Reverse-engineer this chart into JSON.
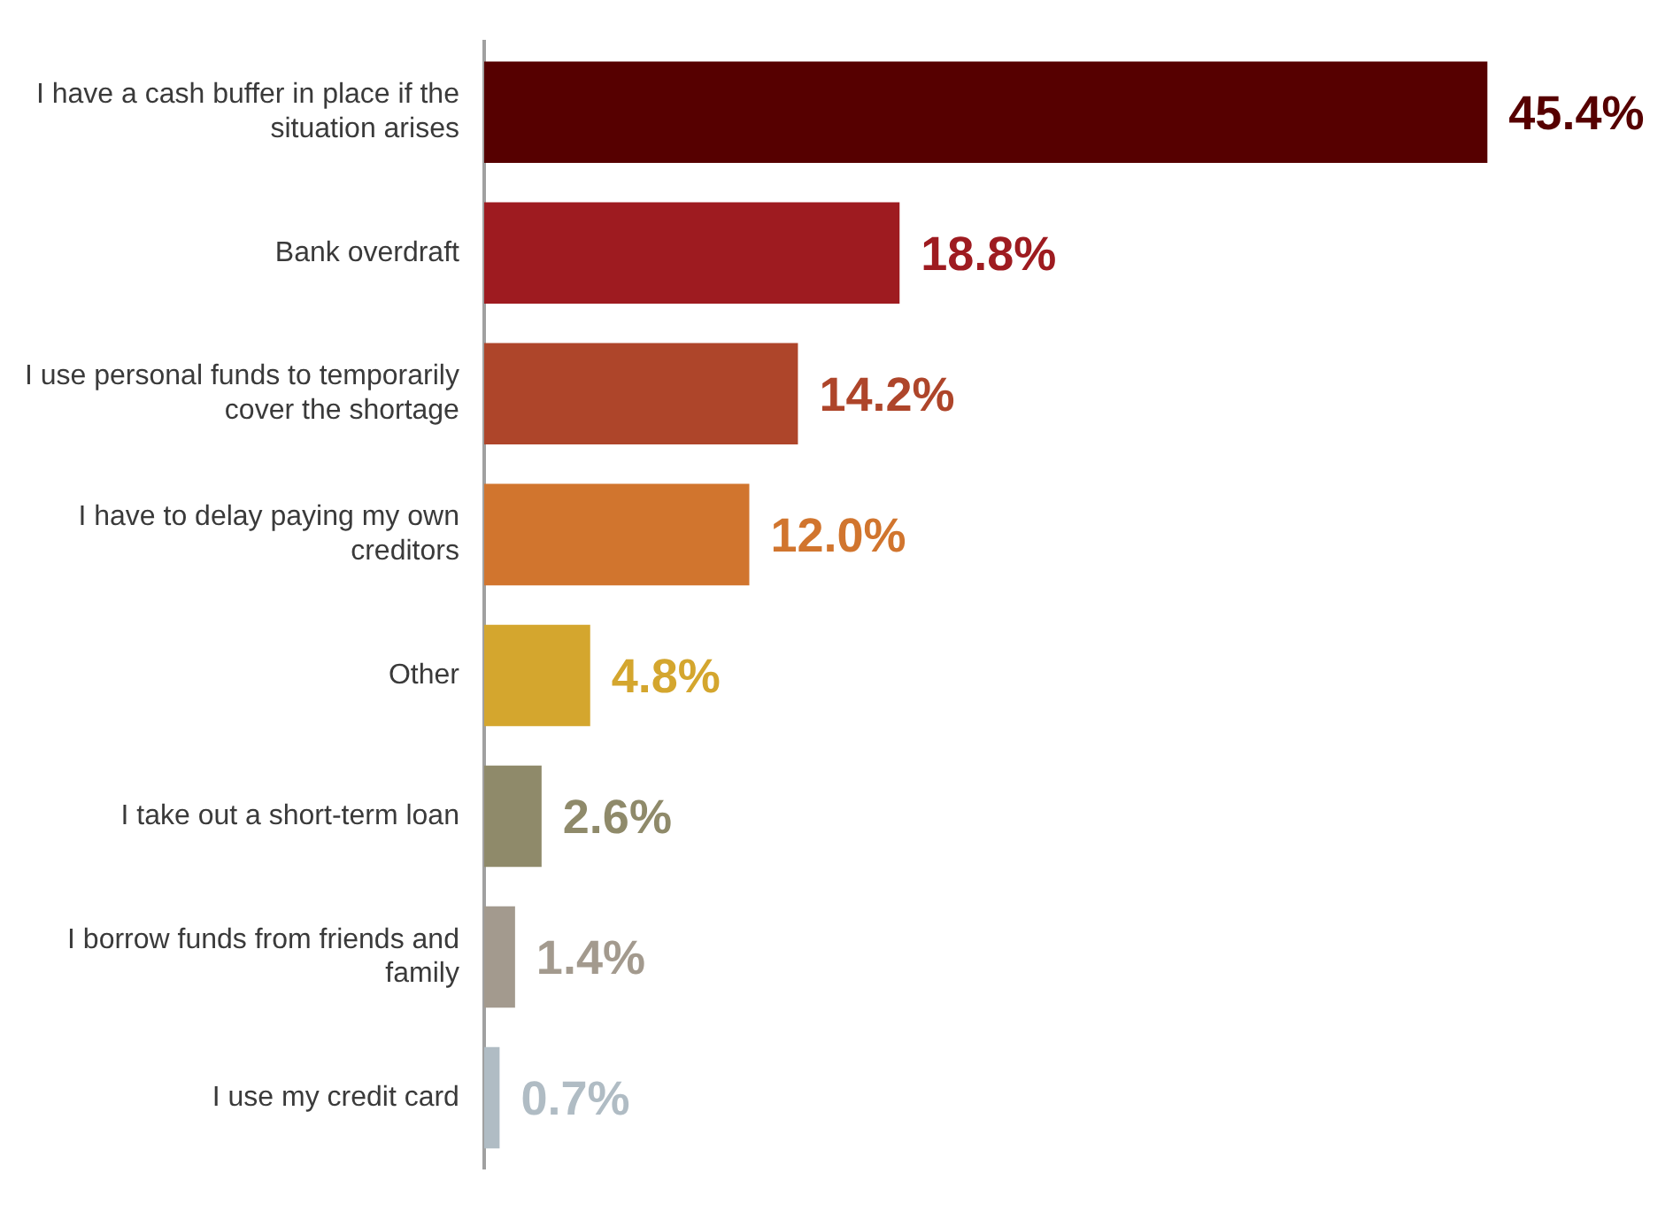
{
  "chart_data": {
    "type": "bar",
    "orientation": "horizontal",
    "categories": [
      "I have a cash buffer in place if the situation arises",
      "Bank overdraft",
      "I use personal funds to temporarily cover the shortage",
      "I have to delay paying my own creditors",
      "Other",
      "I take out a short-term loan",
      "I borrow funds from friends and family",
      "I use my credit card"
    ],
    "values": [
      45.4,
      18.8,
      14.2,
      12.0,
      4.8,
      2.6,
      1.4,
      0.7
    ],
    "value_labels": [
      "45.4%",
      "18.8%",
      "14.2%",
      "12.0%",
      "4.8%",
      "2.6%",
      "1.4%",
      "0.7%"
    ],
    "colors": [
      "#560000",
      "#9e1b20",
      "#ae452a",
      "#d1752e",
      "#d4a62e",
      "#8f8a6a",
      "#a39a8e",
      "#b0bcc4"
    ],
    "grid": false,
    "legend": false
  }
}
